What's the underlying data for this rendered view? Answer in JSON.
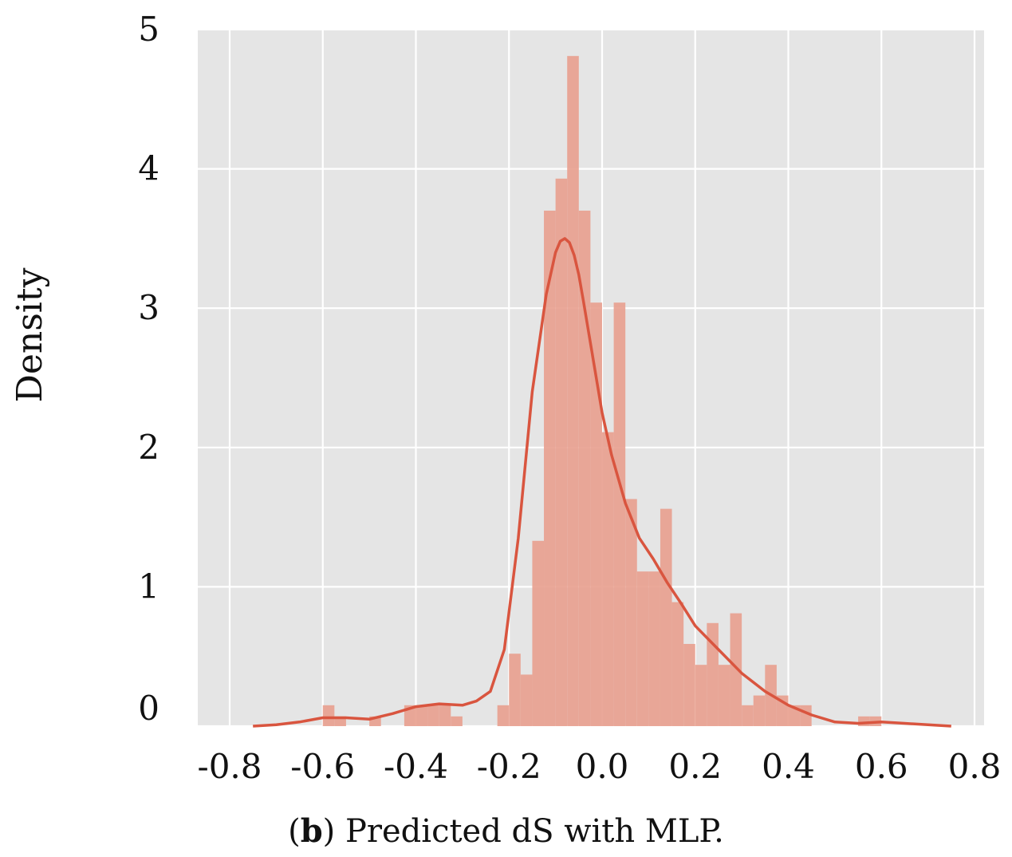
{
  "caption": {
    "open": "(",
    "letter": "b",
    "rest": ") Predicted dS with MLP."
  },
  "chart_data": {
    "type": "histogram",
    "title": "",
    "xlabel": "",
    "ylabel": "Density",
    "xlim": [
      -0.8,
      0.8
    ],
    "ylim": [
      0,
      5
    ],
    "x_ticks": [
      "-0.8",
      "-0.6",
      "-0.4",
      "-0.2",
      "0.0",
      "0.2",
      "0.4",
      "0.6",
      "0.8"
    ],
    "x_tick_values": [
      -0.8,
      -0.6,
      -0.4,
      -0.2,
      0.0,
      0.2,
      0.4,
      0.6,
      0.8
    ],
    "y_ticks": [
      "0",
      "1",
      "2",
      "3",
      "4",
      "5"
    ],
    "y_tick_values": [
      0,
      1,
      2,
      3,
      4,
      5
    ],
    "grid": true,
    "background": "#e5e5e5",
    "grid_color": "#ffffff",
    "bar_color": "#e8a190",
    "kde_color": "#d9553f",
    "bins": {
      "left": [
        -0.6,
        -0.575,
        -0.5,
        -0.425,
        -0.4,
        -0.375,
        -0.35,
        -0.325,
        -0.225,
        -0.2,
        -0.175,
        -0.15,
        -0.125,
        -0.1,
        -0.075,
        -0.05,
        -0.025,
        0.0,
        0.025,
        0.05,
        0.075,
        0.1,
        0.125,
        0.15,
        0.175,
        0.2,
        0.225,
        0.25,
        0.275,
        0.3,
        0.325,
        0.35,
        0.375,
        0.4,
        0.425,
        0.55,
        0.575
      ],
      "width": 0.025,
      "density": [
        0.15,
        0.07,
        0.07,
        0.15,
        0.15,
        0.15,
        0.15,
        0.07,
        0.15,
        0.52,
        0.37,
        1.33,
        3.7,
        3.93,
        4.81,
        3.7,
        3.04,
        2.11,
        3.04,
        1.63,
        1.11,
        1.11,
        1.56,
        0.89,
        0.59,
        0.44,
        0.74,
        0.44,
        0.81,
        0.15,
        0.22,
        0.44,
        0.22,
        0.15,
        0.15,
        0.07,
        0.07
      ]
    },
    "kde": {
      "x": [
        -0.75,
        -0.7,
        -0.65,
        -0.6,
        -0.55,
        -0.5,
        -0.45,
        -0.4,
        -0.35,
        -0.3,
        -0.27,
        -0.24,
        -0.21,
        -0.18,
        -0.15,
        -0.12,
        -0.1,
        -0.09,
        -0.08,
        -0.07,
        -0.06,
        -0.05,
        -0.04,
        -0.02,
        0.0,
        0.02,
        0.05,
        0.08,
        0.11,
        0.14,
        0.17,
        0.2,
        0.25,
        0.3,
        0.35,
        0.4,
        0.45,
        0.5,
        0.55,
        0.6,
        0.65,
        0.7,
        0.75
      ],
      "y": [
        0.0,
        0.01,
        0.03,
        0.06,
        0.06,
        0.05,
        0.09,
        0.14,
        0.16,
        0.15,
        0.18,
        0.25,
        0.55,
        1.35,
        2.4,
        3.1,
        3.4,
        3.48,
        3.5,
        3.47,
        3.38,
        3.24,
        3.05,
        2.65,
        2.25,
        1.95,
        1.6,
        1.35,
        1.2,
        1.03,
        0.88,
        0.72,
        0.55,
        0.38,
        0.25,
        0.15,
        0.08,
        0.03,
        0.02,
        0.03,
        0.02,
        0.01,
        0.0
      ]
    }
  }
}
